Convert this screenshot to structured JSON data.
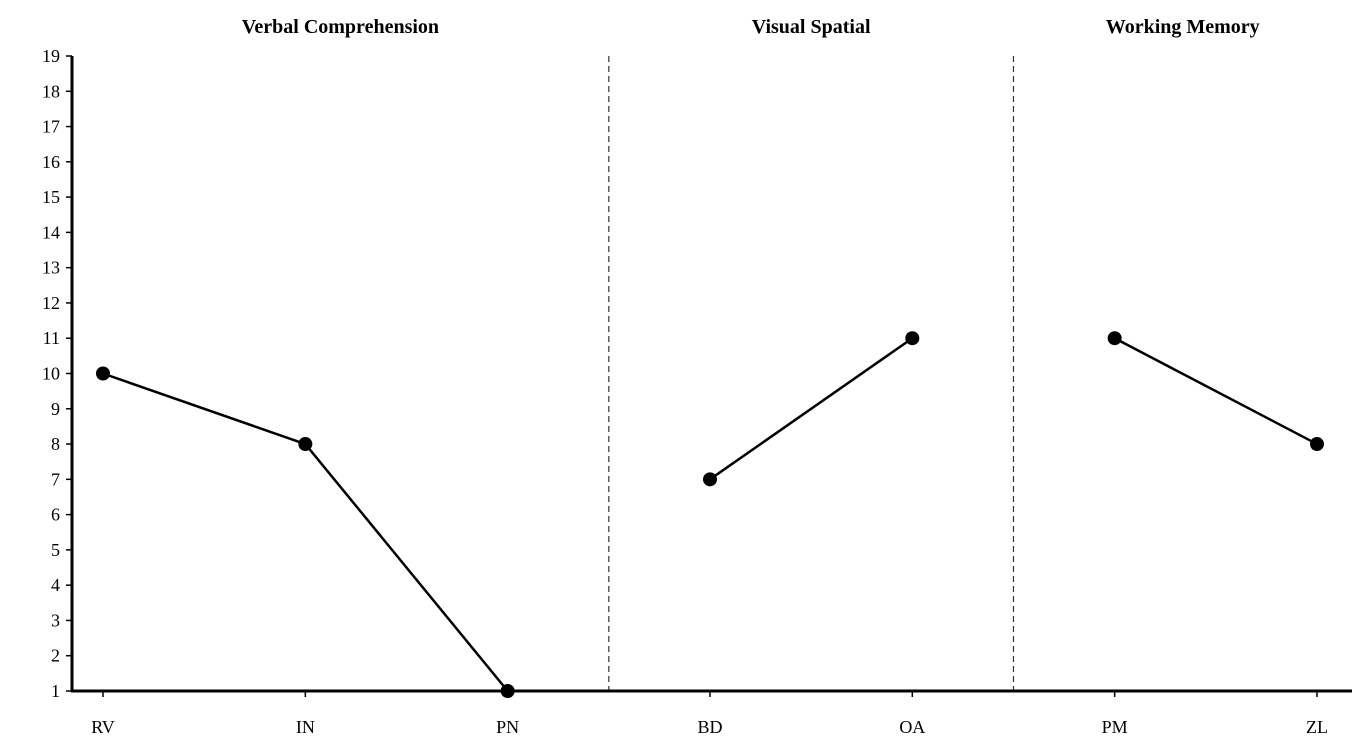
{
  "chart_data": {
    "type": "line",
    "groups": [
      {
        "title": "Verbal Comprehension",
        "categories": [
          "RV",
          "IN",
          "PN"
        ],
        "values": [
          10,
          8,
          1
        ]
      },
      {
        "title": "Visual Spatial",
        "categories": [
          "BD",
          "OA"
        ],
        "values": [
          7,
          11
        ]
      },
      {
        "title": "Working Memory",
        "categories": [
          "PM",
          "ZL"
        ],
        "values": [
          11,
          8
        ]
      }
    ],
    "categories": [
      "RV",
      "IN",
      "PN",
      "BD",
      "OA",
      "PM",
      "ZL"
    ],
    "ylim": [
      1,
      19
    ],
    "yticks": [
      "1",
      "2",
      "3",
      "4",
      "5",
      "6",
      "7",
      "8",
      "9",
      "10",
      "11",
      "12",
      "13",
      "14",
      "15",
      "16",
      "17",
      "18",
      "19"
    ],
    "grid": false,
    "group_separators": "dashed",
    "colors": {
      "line": "#000000",
      "marker": "#000000",
      "separator": "#333333"
    }
  }
}
